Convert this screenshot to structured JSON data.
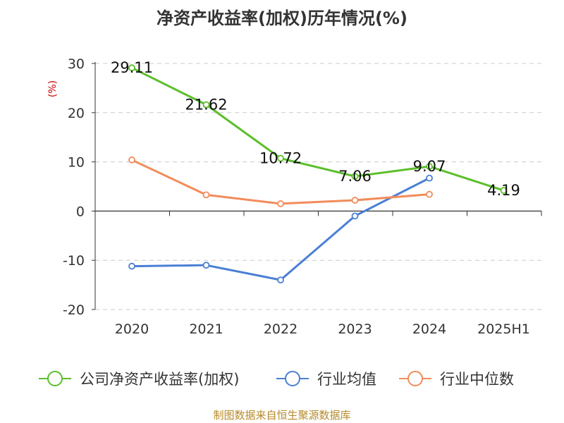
{
  "chart_data": {
    "type": "line",
    "title": "净资产收益率(加权)历年情况(%)",
    "ylabel": "(%)",
    "categories": [
      "2020",
      "2021",
      "2022",
      "2023",
      "2024",
      "2025H1"
    ],
    "ylim": [
      -20,
      30
    ],
    "yticks": [
      30,
      20,
      10,
      0,
      -10,
      -20
    ],
    "grid": true,
    "legend_position": "bottom",
    "series": [
      {
        "name": "公司净资产收益率(加权)",
        "color": "#5cbf2a",
        "values": [
          29.11,
          21.62,
          10.72,
          7.06,
          9.07,
          4.19
        ],
        "labels": [
          "29.11",
          "21.62",
          "10.72",
          "7.06",
          "9.07",
          "4.19"
        ]
      },
      {
        "name": "行业均值",
        "color": "#4a7fd4",
        "values": [
          -11.2,
          -11.0,
          -14.0,
          -1.0,
          6.7,
          null
        ]
      },
      {
        "name": "行业中位数",
        "color": "#f28c5b",
        "values": [
          10.4,
          3.3,
          1.5,
          2.2,
          3.4,
          null
        ]
      }
    ]
  },
  "source": "制图数据来自恒生聚源数据库",
  "colors": {
    "unit_label": "#cc0000",
    "axis": "#333333",
    "grid": "#cccccc"
  }
}
